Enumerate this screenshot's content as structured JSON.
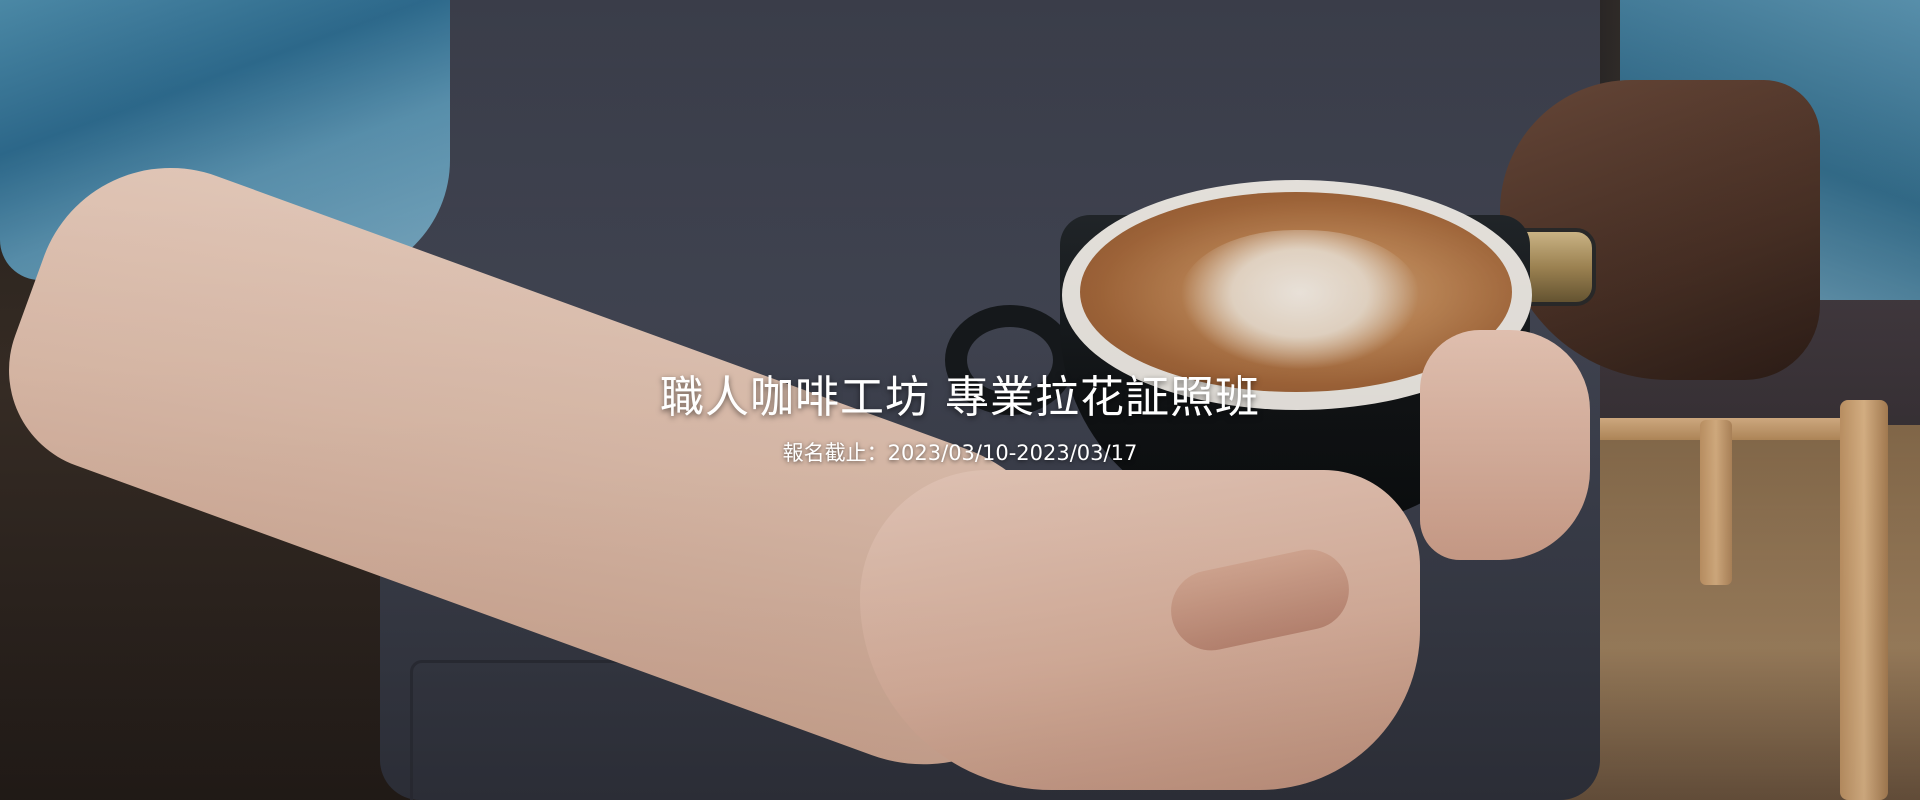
{
  "hero": {
    "title": "職人咖啡工坊 專業拉花証照班",
    "subtitle": "報名截止：2023/03/10-2023/03/17"
  },
  "colors": {
    "text": "#ffffff",
    "apron": "#3f4250",
    "shirt": "#4f8fae",
    "crema": "#c48a58",
    "cup": "#111416"
  }
}
